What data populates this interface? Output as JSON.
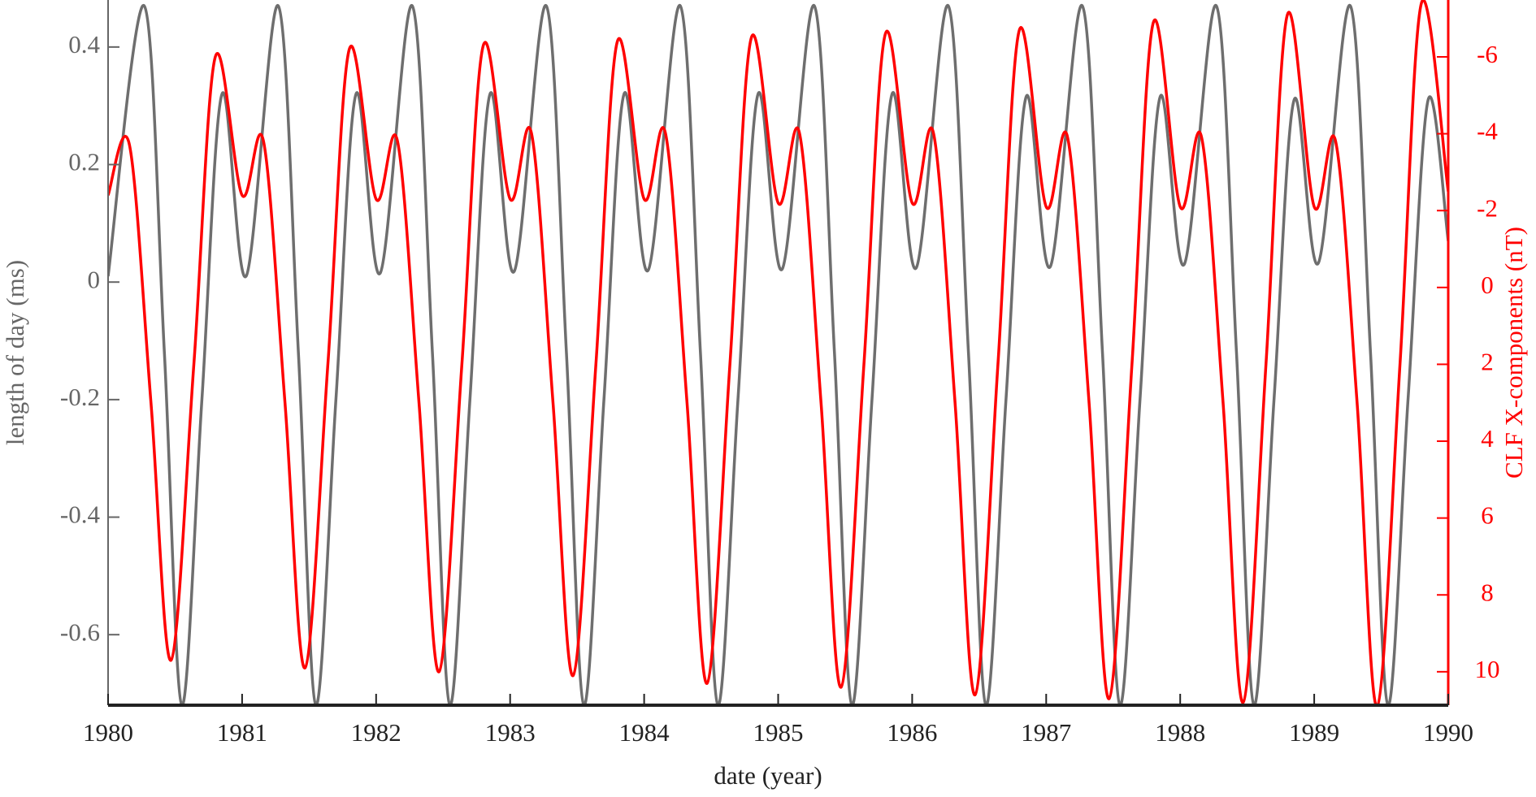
{
  "chart_data": {
    "type": "line",
    "x_label": "date (year)",
    "y_label": "length of day (ms)",
    "y2_label": "CLF X-components (nT)",
    "xlim": [
      1980,
      1990
    ],
    "xticks": [
      1980,
      1981,
      1982,
      1983,
      1984,
      1985,
      1986,
      1987,
      1988,
      1989,
      1990
    ],
    "ylim": [
      -0.72,
      0.48
    ],
    "yticks": [
      -0.6,
      -0.4,
      -0.2,
      0,
      0.2,
      0.4
    ],
    "y2lim": [
      10.87,
      -7.48
    ],
    "y2ticks": [
      -6,
      -4,
      -2,
      0,
      2,
      4,
      6,
      8,
      10
    ],
    "y_color": "#666666",
    "y2_color": "#ff0000",
    "series": [
      {
        "color": "#6e6e6e",
        "axis": "y",
        "x": [
          1980.0,
          1980.27,
          1980.42,
          1980.55,
          1980.7,
          1980.85,
          1981.03,
          1981.27,
          1981.42,
          1981.55,
          1981.7,
          1981.85,
          1982.03,
          1982.27,
          1982.42,
          1982.55,
          1982.7,
          1982.85,
          1983.03,
          1983.27,
          1983.42,
          1983.55,
          1983.7,
          1983.85,
          1984.03,
          1984.27,
          1984.42,
          1984.55,
          1984.7,
          1984.85,
          1985.03,
          1985.27,
          1985.42,
          1985.55,
          1985.7,
          1985.85,
          1986.03,
          1986.27,
          1986.42,
          1986.55,
          1986.7,
          1986.85,
          1987.03,
          1987.27,
          1987.42,
          1987.55,
          1987.7,
          1987.85,
          1988.03,
          1988.27,
          1988.42,
          1988.55,
          1988.7,
          1988.85,
          1989.03,
          1989.27,
          1989.42,
          1989.55,
          1989.7,
          1989.85,
          1990.0
        ],
        "values": [
          0.01,
          0.47,
          -0.12,
          -0.72,
          -0.2,
          0.32,
          0.01,
          0.47,
          -0.12,
          -0.72,
          -0.2,
          0.32,
          0.015,
          0.47,
          -0.12,
          -0.72,
          -0.2,
          0.32,
          0.018,
          0.47,
          -0.12,
          -0.72,
          -0.2,
          0.32,
          0.02,
          0.47,
          -0.12,
          -0.72,
          -0.2,
          0.32,
          0.022,
          0.47,
          -0.12,
          -0.72,
          -0.2,
          0.32,
          0.024,
          0.47,
          -0.12,
          -0.72,
          -0.2,
          0.315,
          0.026,
          0.47,
          -0.12,
          -0.72,
          -0.2,
          0.315,
          0.03,
          0.47,
          -0.12,
          -0.72,
          -0.2,
          0.31,
          0.032,
          0.47,
          -0.12,
          -0.72,
          -0.2,
          0.31,
          0.07
        ]
      },
      {
        "color": "#ff0000",
        "axis": "y2",
        "x": [
          1980.0,
          1980.16,
          1980.32,
          1980.47,
          1980.64,
          1980.8,
          1981.0,
          1981.16,
          1981.32,
          1981.47,
          1981.64,
          1981.8,
          1982.0,
          1982.16,
          1982.32,
          1982.47,
          1982.64,
          1982.8,
          1983.0,
          1983.16,
          1983.32,
          1983.47,
          1983.64,
          1983.8,
          1984.0,
          1984.16,
          1984.32,
          1984.47,
          1984.64,
          1984.8,
          1985.0,
          1985.16,
          1985.32,
          1985.47,
          1985.64,
          1985.8,
          1986.0,
          1986.16,
          1986.32,
          1986.47,
          1986.64,
          1986.8,
          1987.0,
          1987.16,
          1987.32,
          1987.47,
          1987.64,
          1987.8,
          1988.0,
          1988.16,
          1988.32,
          1988.47,
          1988.64,
          1988.8,
          1989.0,
          1989.16,
          1989.32,
          1989.47,
          1989.64,
          1989.8,
          1990.0
        ],
        "values": [
          -2.4,
          -3.7,
          3.0,
          9.7,
          2.0,
          -6.0,
          -2.4,
          -3.8,
          3.0,
          9.9,
          2.0,
          -6.2,
          -2.3,
          -3.8,
          3.0,
          10.0,
          2.0,
          -6.3,
          -2.3,
          -4.0,
          3.0,
          10.1,
          2.0,
          -6.4,
          -2.3,
          -4.0,
          3.0,
          10.3,
          2.0,
          -6.5,
          -2.2,
          -4.0,
          3.0,
          10.4,
          2.0,
          -6.6,
          -2.2,
          -4.0,
          3.0,
          10.6,
          2.0,
          -6.7,
          -2.1,
          -3.9,
          3.0,
          10.7,
          2.0,
          -6.9,
          -2.1,
          -3.9,
          3.0,
          10.8,
          2.0,
          -7.1,
          -2.1,
          -3.8,
          3.0,
          10.9,
          2.0,
          -7.4,
          -2.5
        ]
      }
    ]
  }
}
